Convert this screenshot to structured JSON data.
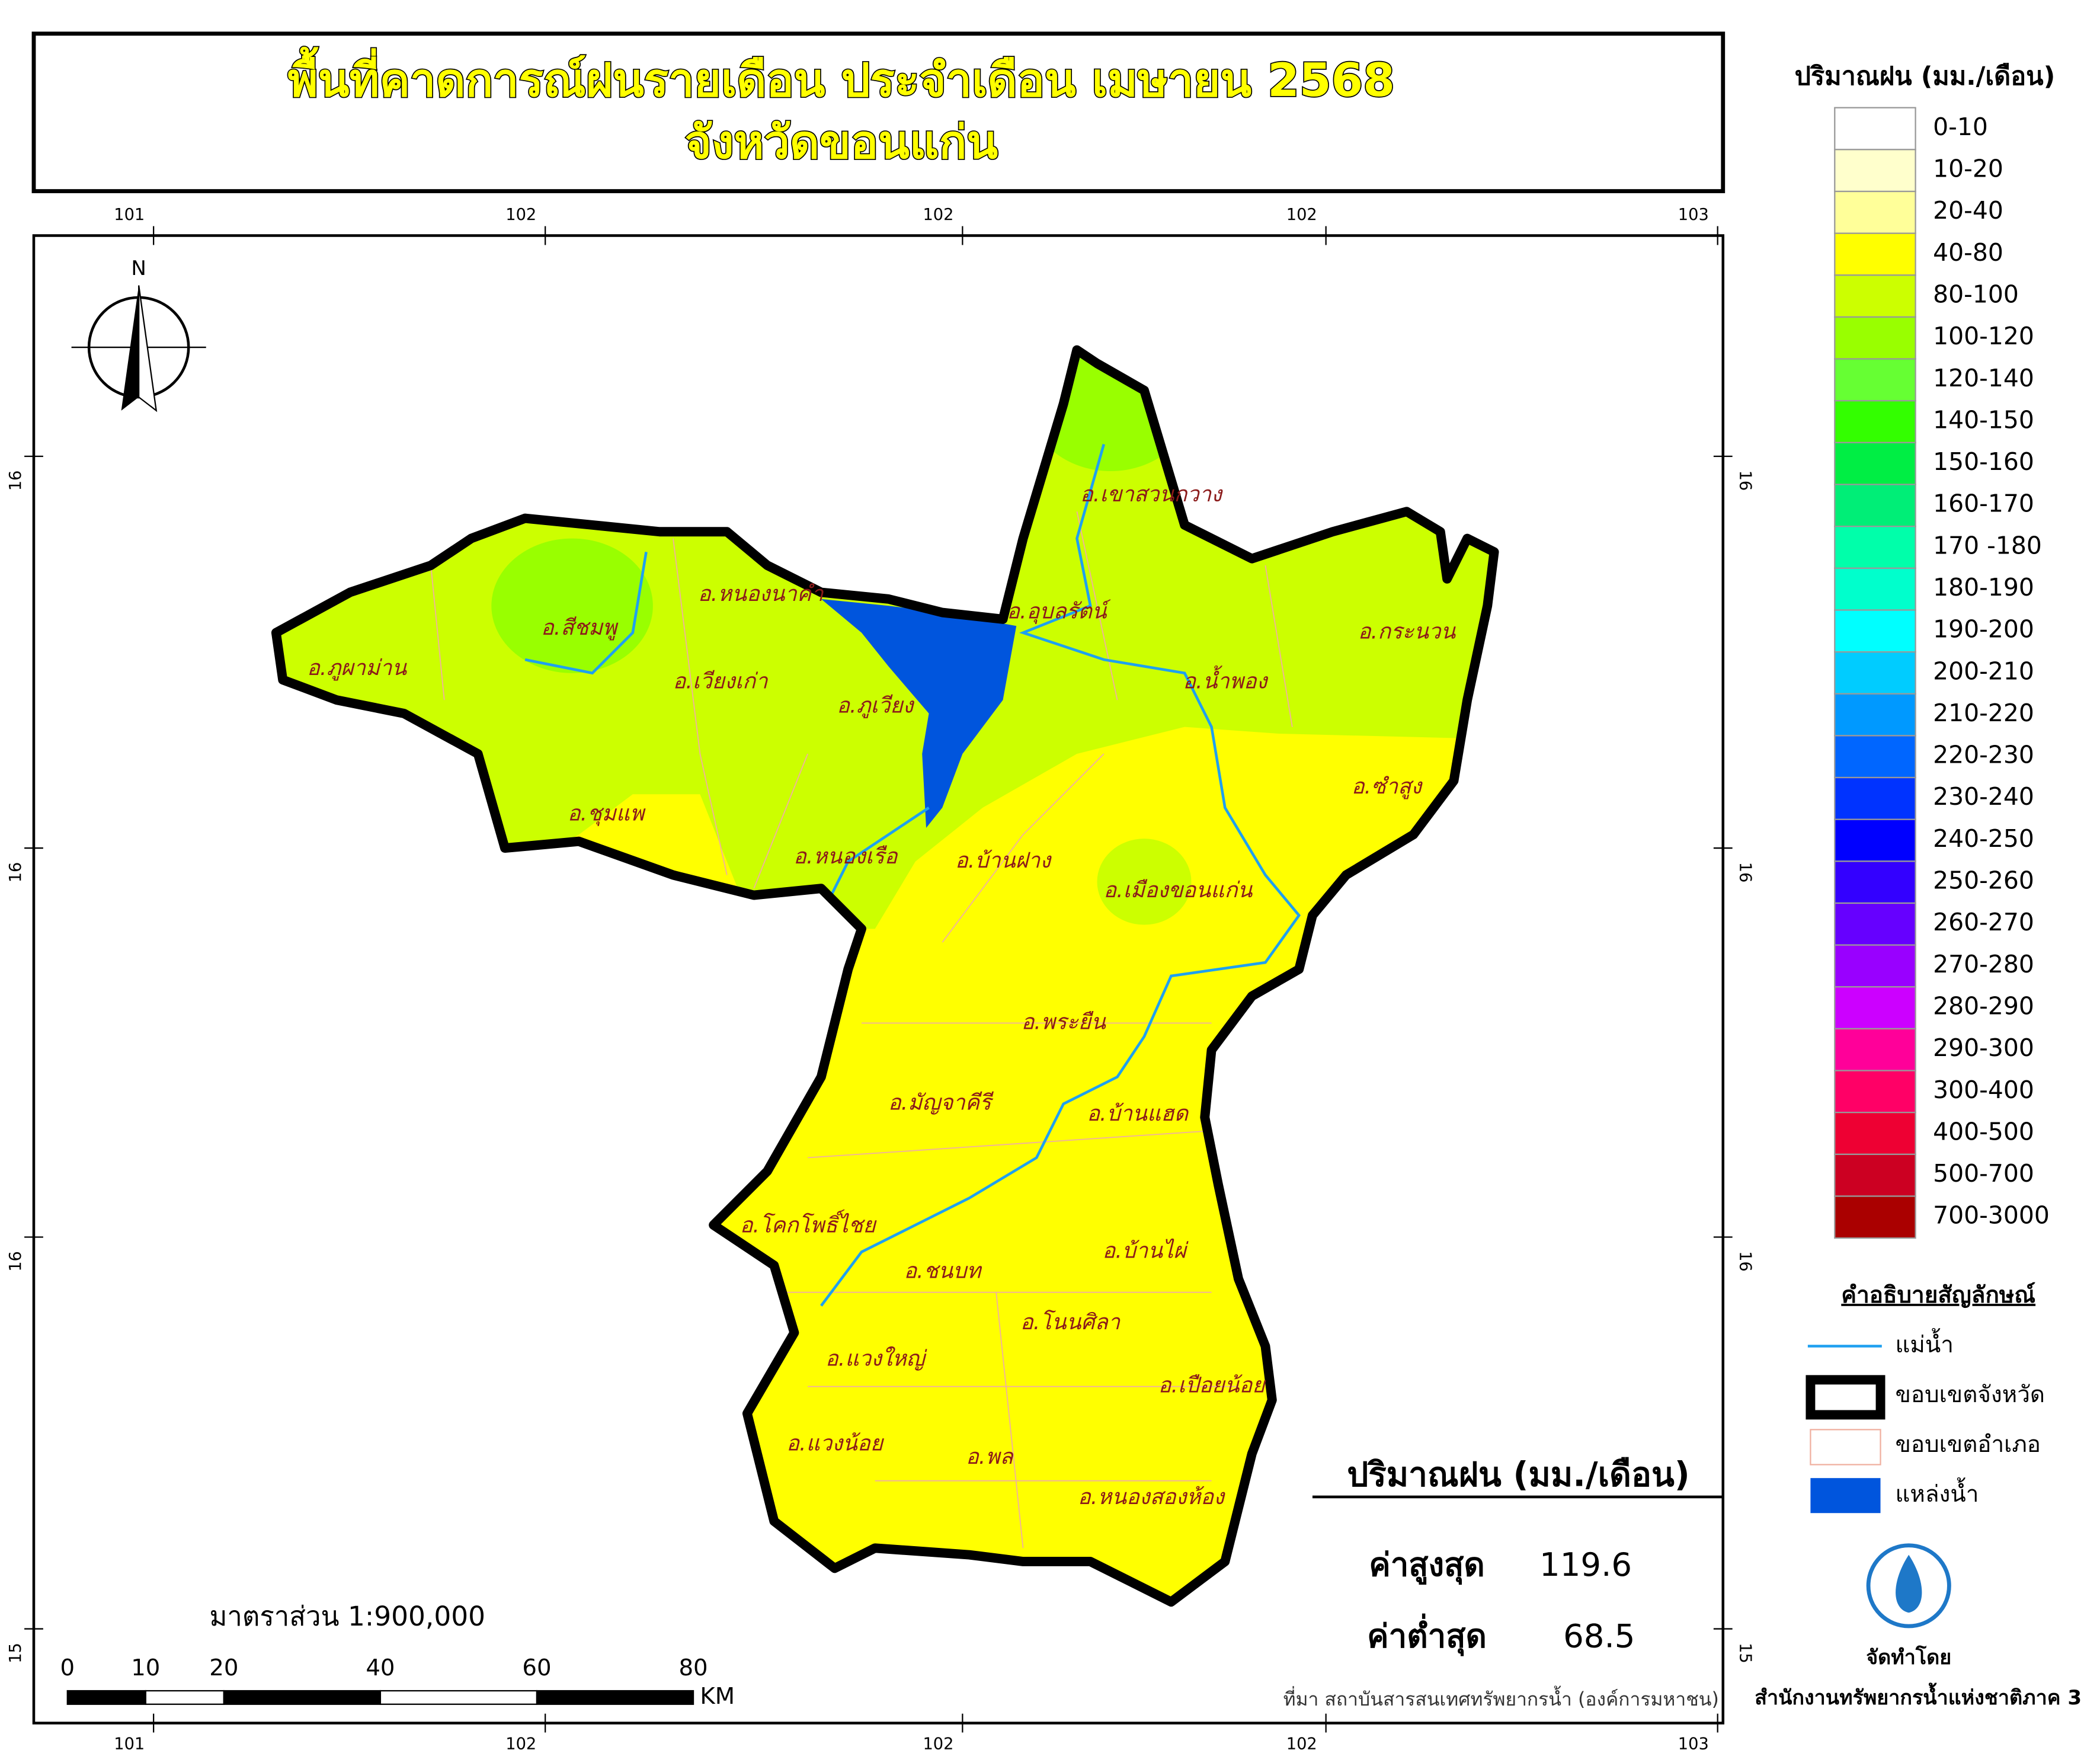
{
  "title": {
    "line1": "พื้นที่คาดการณ์ฝนรายเดือน ประจำเดือน เมษายน 2568",
    "line2": "จังหวัดขอนแก่น"
  },
  "grid_labels": {
    "top": [
      "101",
      "102",
      "102",
      "102",
      "103"
    ],
    "bottom": [
      "101",
      "102",
      "102",
      "102",
      "103"
    ],
    "left": [
      "16",
      "16",
      "16",
      "15"
    ],
    "right": [
      "16",
      "16",
      "16",
      "15"
    ]
  },
  "north": "N",
  "districts": [
    "อ.เขาสวนกวาง",
    "อ.หนองนาคำ",
    "อ.อุบลรัตน์",
    "อ.สีชมพู",
    "อ.ภูผาม่าน",
    "อ.เวียงเก่า",
    "อ.ภูเวียง",
    "อ.น้ำพอง",
    "อ.กระนวน",
    "อ.ชุมแพ",
    "อ.ซำสูง",
    "อ.หนองเรือ",
    "อ.บ้านฝาง",
    "อ.เมืองขอนแก่น",
    "อ.พระยืน",
    "อ.มัญจาคีรี",
    "อ.บ้านแฮด",
    "อ.โคกโพธิ์ไชย",
    "อ.ชนบท",
    "อ.บ้านไผ่",
    "อ.โนนศิลา",
    "อ.แวงใหญ่",
    "อ.เปือยน้อย",
    "อ.แวงน้อย",
    "อ.พล",
    "อ.หนองสองห้อง"
  ],
  "legend": {
    "title": "ปริมาณฝน (มม./เดือน)",
    "classes": [
      {
        "label": "0-10",
        "color": "#ffffff"
      },
      {
        "label": "10-20",
        "color": "#ffffcc"
      },
      {
        "label": "20-40",
        "color": "#ffff99"
      },
      {
        "label": "40-80",
        "color": "#ffff00"
      },
      {
        "label": "80-100",
        "color": "#ccff00"
      },
      {
        "label": "100-120",
        "color": "#99ff00"
      },
      {
        "label": "120-140",
        "color": "#66ff33"
      },
      {
        "label": "140-150",
        "color": "#33ff00"
      },
      {
        "label": "150-160",
        "color": "#00ee44"
      },
      {
        "label": "160-170",
        "color": "#00ee77"
      },
      {
        "label": "170 -180",
        "color": "#00ffaa"
      },
      {
        "label": "180-190",
        "color": "#00ffcc"
      },
      {
        "label": "190-200",
        "color": "#00ffff"
      },
      {
        "label": "200-210",
        "color": "#00ccff"
      },
      {
        "label": "210-220",
        "color": "#0099ff"
      },
      {
        "label": "220-230",
        "color": "#0066ff"
      },
      {
        "label": "230-240",
        "color": "#0033ff"
      },
      {
        "label": "240-250",
        "color": "#0000ff"
      },
      {
        "label": "250-260",
        "color": "#3300ff"
      },
      {
        "label": "260-270",
        "color": "#6600ff"
      },
      {
        "label": "270-280",
        "color": "#9900ff"
      },
      {
        "label": "280-290",
        "color": "#cc00ff"
      },
      {
        "label": "290-300",
        "color": "#ff0099"
      },
      {
        "label": "300-400",
        "color": "#ff0066"
      },
      {
        "label": "400-500",
        "color": "#ee0033"
      },
      {
        "label": "500-700",
        "color": "#cc0022"
      },
      {
        "label": "700-3000",
        "color": "#aa0000"
      }
    ]
  },
  "symbols": {
    "title": "คำอธิบายสัญลักษณ์",
    "items": [
      "แม่น้ำ",
      "ขอบเขตจังหวัด",
      "ขอบเขตอำเภอ",
      "แหล่งน้ำ"
    ]
  },
  "stats": {
    "title": "ปริมาณฝน (มม./เดือน)",
    "max_label": "ค่าสูงสุด",
    "max": 119.6,
    "min_label": "ค่าต่ำสุด",
    "min": 68.5
  },
  "scale": {
    "label": "มาตราส่วน 1:900,000",
    "ticks": [
      0,
      10,
      20,
      40,
      60,
      80
    ],
    "unit": "KM"
  },
  "source": "ที่มา  สถาบันสารสนเทศทรัพยากรน้ำ (องค์การมหาชน)",
  "credit": {
    "label": "จัดทำโดย",
    "org": "สำนักงานทรัพยากรน้ำแห่งชาติภาค 3"
  }
}
